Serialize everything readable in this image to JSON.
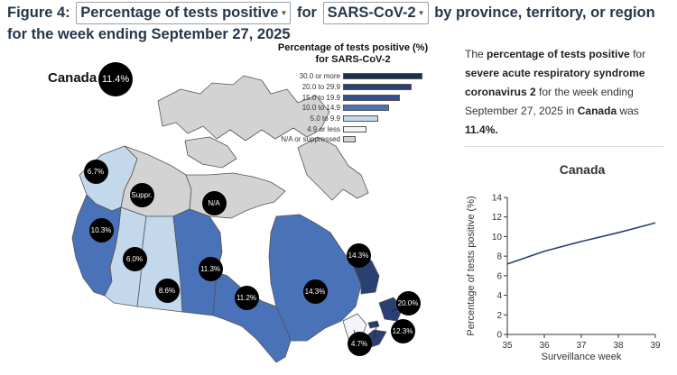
{
  "title": {
    "prefix": "Figure 4:",
    "metric_select": "Percentage of tests positive",
    "for": "for",
    "pathogen_select": "SARS-CoV-2",
    "suffix": "by province, territory, or region for the week ending September 27, 2025"
  },
  "canada": {
    "label": "Canada",
    "value": "11.4%"
  },
  "legend": {
    "title": "Percentage of tests positive (%) for SARS-CoV-2",
    "items": [
      {
        "label": "30.0 or more",
        "color": "#1d2d4f",
        "rel": 1.0
      },
      {
        "label": "20.0 to 29.9",
        "color": "#2b3f73",
        "rel": 0.86
      },
      {
        "label": "15.0 to 19.9",
        "color": "#344f90",
        "rel": 0.72
      },
      {
        "label": "10.0 to 14.9",
        "color": "#4a72b8",
        "rel": 0.58
      },
      {
        "label": "5.0 to 9.9",
        "color": "#c4d8ec",
        "rel": 0.44
      },
      {
        "label": "4.9 or less",
        "color": "#f4f4fb",
        "rel": 0.3
      },
      {
        "label": "N/A or suppressed",
        "color": "#d3d3d3",
        "rel": 0.16
      }
    ]
  },
  "regions": [
    {
      "name": "yukon",
      "value": "6.7%",
      "color": "#c4d8ec"
    },
    {
      "name": "northwest-territories",
      "value": "Suppr.",
      "color": "#d3d3d3"
    },
    {
      "name": "nunavut",
      "value": "N/A",
      "color": "#d3d3d3"
    },
    {
      "name": "british-columbia",
      "value": "10.3%",
      "color": "#4a72b8"
    },
    {
      "name": "alberta",
      "value": "6.0%",
      "color": "#c4d8ec"
    },
    {
      "name": "saskatchewan",
      "value": "8.6%",
      "color": "#c4d8ec"
    },
    {
      "name": "manitoba",
      "value": "11.3%",
      "color": "#4a72b8"
    },
    {
      "name": "ontario",
      "value": "11.2%",
      "color": "#4a72b8"
    },
    {
      "name": "quebec",
      "value": "14.3%",
      "color": "#4a72b8"
    },
    {
      "name": "nunavik",
      "value": "14.3%",
      "color": "#4a72b8"
    },
    {
      "name": "newfoundland-labrador",
      "value": "20.0%",
      "color": "#2b3f73"
    },
    {
      "name": "new-brunswick",
      "value": "4.7%",
      "color": "#f4f4fb"
    },
    {
      "name": "nova-scotia-pei",
      "value": "12.3%",
      "color": "#4a72b8"
    }
  ],
  "description": {
    "p1": "The ",
    "b1": "percentage of tests positive",
    "p2": " for ",
    "b2": "severe acute respiratory syndrome coronavirus 2",
    "p3": " for the week ending September 27, 2025 in ",
    "b3": "Canada",
    "p4": " was ",
    "b4": "11.4%."
  },
  "chart_data": {
    "type": "line",
    "title": "Canada",
    "xlabel": "Surveillance week",
    "ylabel": "Percentage of tests positive (%)",
    "x": [
      35,
      36,
      37,
      38,
      39
    ],
    "xticks": [
      "35",
      "36",
      "37",
      "38",
      "39"
    ],
    "yticks": [
      "0",
      "2",
      "4",
      "6",
      "8",
      "10",
      "12",
      "14"
    ],
    "xlim": [
      35,
      39
    ],
    "ylim": [
      0,
      14
    ],
    "series": [
      {
        "values": [
          7.2,
          8.5,
          9.5,
          10.4,
          11.4
        ],
        "color": "#2b3f73"
      }
    ],
    "grid": false
  }
}
